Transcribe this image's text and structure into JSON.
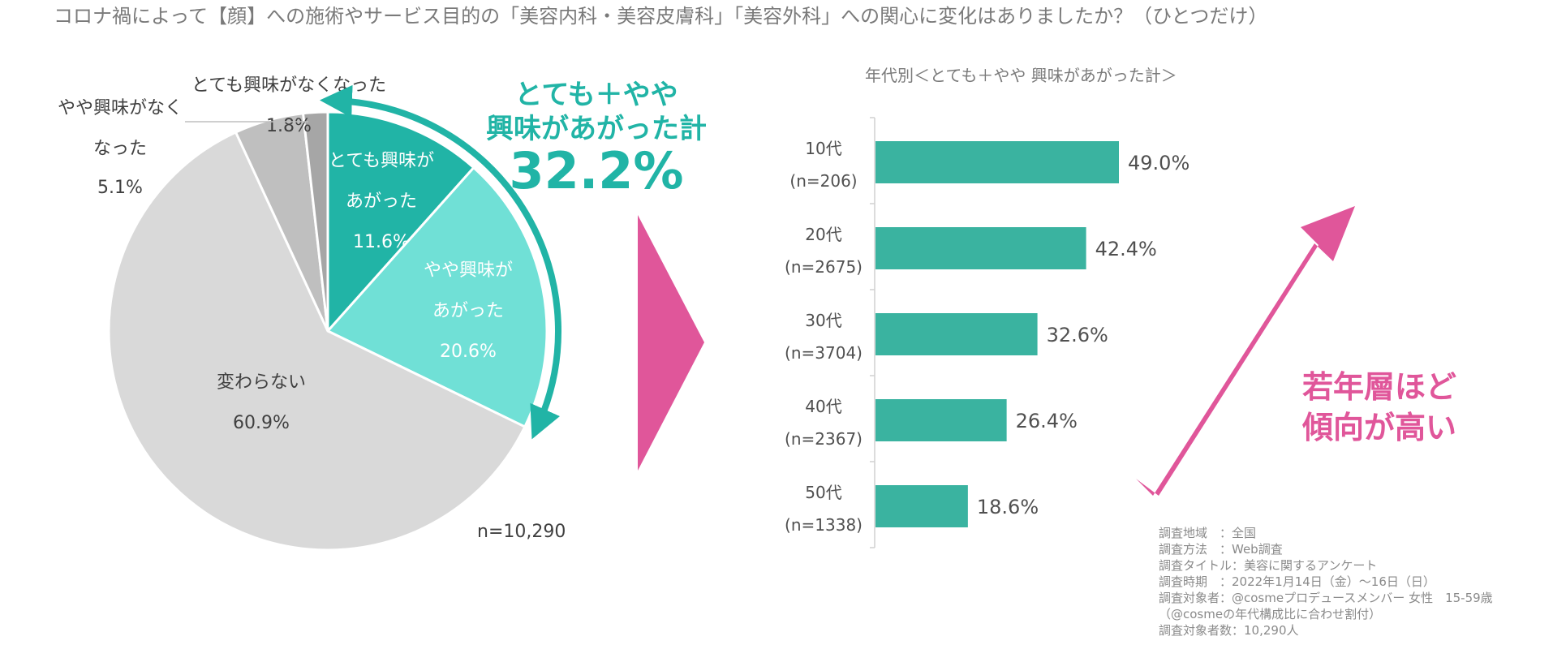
{
  "header": {
    "title": "コロナ禍によって【顔】への施術やサービス目的の「美容内科・美容皮膚科」「美容外科」への関心に変化はありましたか？（ひとつだけ）"
  },
  "chart_data": [
    {
      "type": "pie",
      "sample": "n=10,290",
      "slices": [
        {
          "label_lines": [
            "とても興味が",
            "あがった"
          ],
          "value": 11.6,
          "value_text": "11.6%",
          "color": "#21b4a6"
        },
        {
          "label_lines": [
            "やや興味が",
            "あがった"
          ],
          "value": 20.6,
          "value_text": "20.6%",
          "color": "#70e0d6"
        },
        {
          "label_lines": [
            "変わらない"
          ],
          "value": 60.9,
          "value_text": "60.9%",
          "color": "#d9d9d9"
        },
        {
          "label_lines": [
            "やや興味がなく",
            "なった"
          ],
          "value": 5.1,
          "value_text": "5.1%",
          "color": "#bfbfbf"
        },
        {
          "label_lines": [
            "とても興味がなくなった"
          ],
          "value": 1.8,
          "value_text": "1.8%",
          "color": "#a6a6a6"
        }
      ],
      "callout": {
        "lines": [
          "とても＋やや",
          "興味があがった計"
        ],
        "value_text": "32.2%",
        "color": "#21b4a6"
      }
    },
    {
      "type": "bar",
      "orientation": "horizontal",
      "title": "年代別＜とても＋やや 興味があがった計＞",
      "categories": [
        {
          "name": "10代",
          "n": "(n=206)"
        },
        {
          "name": "20代",
          "n": "(n=2675)"
        },
        {
          "name": "30代",
          "n": "(n=3704)"
        },
        {
          "name": "40代",
          "n": "(n=2367)"
        },
        {
          "name": "50代",
          "n": "(n=1338)"
        }
      ],
      "values": [
        49.0,
        42.4,
        32.6,
        26.4,
        18.6
      ],
      "value_labels": [
        "49.0%",
        "42.4%",
        "32.6%",
        "26.4%",
        "18.6%"
      ],
      "xlim": [
        0,
        60
      ],
      "bar_color": "#3ab3a0",
      "annotation": {
        "lines": [
          "若年層ほど",
          "傾向が高い"
        ],
        "color": "#e0569a"
      }
    }
  ],
  "survey_notes": [
    "調査地域　：全国",
    "調査方法　：Web調査",
    "調査タイトル：美容に関するアンケート",
    "調査時期　：2022年1月14日（金）～16日（日）",
    "調査対象者：@cosmeプロデュースメンバー 女性　15-59歳",
    "（@cosmeの年代構成比に合わせ割付）",
    "調査対象者数：10,290人"
  ],
  "colors": {
    "teal": "#21b4a6",
    "pink": "#e0569a"
  }
}
